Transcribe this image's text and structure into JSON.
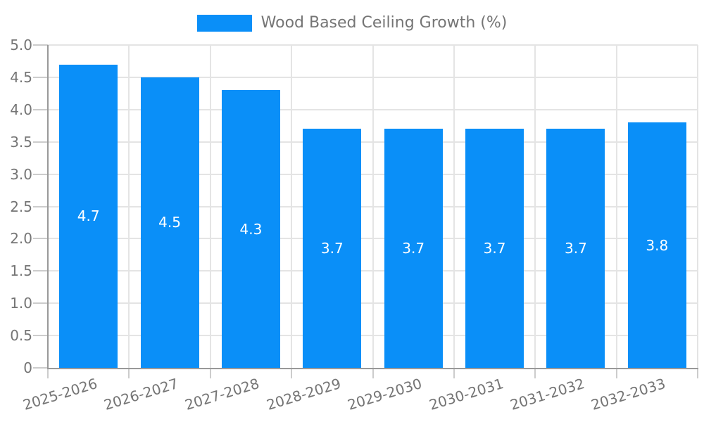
{
  "legend": {
    "label": "Wood Based Ceiling Growth (%)"
  },
  "chart_data": {
    "type": "bar",
    "title": "Wood Based Ceiling Growth (%)",
    "series_name": "Wood Based Ceiling Growth (%)",
    "categories": [
      "2025-2026",
      "2026-2027",
      "2027-2028",
      "2028-2029",
      "2029-2030",
      "2030-2031",
      "2031-2032",
      "2032-2033"
    ],
    "values": [
      4.7,
      4.5,
      4.3,
      3.7,
      3.7,
      3.7,
      3.7,
      3.8
    ],
    "value_labels": [
      "4.7",
      "4.5",
      "4.3",
      "3.7",
      "3.7",
      "3.7",
      "3.7",
      "3.8"
    ],
    "xlabel": "",
    "ylabel": "",
    "ylim": [
      0,
      5
    ],
    "ytick_step": 0.5,
    "ytick_labels": [
      "0",
      "0.5",
      "1.0",
      "1.5",
      "2.0",
      "2.5",
      "3.0",
      "3.5",
      "4.0",
      "4.5",
      "5.0"
    ],
    "grid": true,
    "legend_position": "top-center",
    "colors": {
      "bar": "#0a8ff8",
      "bar_value_text": "#ffffff",
      "axis_text": "#757575",
      "legend_text": "#757575",
      "gridline": "#e4e4e4",
      "tick": "#cccccc",
      "axis_line": "#999999",
      "background": "#ffffff"
    }
  }
}
